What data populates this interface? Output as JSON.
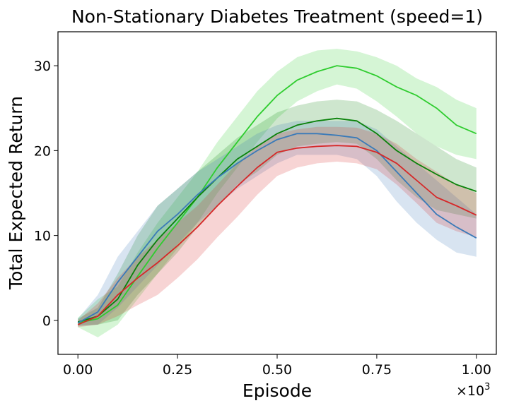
{
  "chart_data": {
    "type": "line",
    "title": "Non-Stationary Diabetes Treatment (speed=1)",
    "xlabel": "Episode",
    "ylabel": "Total Expected Return",
    "x_multiplier": {
      "base": "×10",
      "exponent": "3"
    },
    "xlim": [
      -0.05,
      1.05
    ],
    "ylim": [
      -4,
      34
    ],
    "xticks": [
      0.0,
      0.25,
      0.5,
      0.75,
      1.0
    ],
    "xtick_labels": [
      "0.00",
      "0.25",
      "0.50",
      "0.75",
      "1.00"
    ],
    "yticks": [
      0,
      10,
      20,
      30
    ],
    "ytick_labels": [
      "0",
      "10",
      "20",
      "30"
    ],
    "grid": false,
    "series": [
      {
        "name": "light green",
        "color": "#2ecc2e",
        "x": [
          0.0,
          0.05,
          0.1,
          0.15,
          0.2,
          0.25,
          0.3,
          0.35,
          0.4,
          0.45,
          0.5,
          0.55,
          0.6,
          0.65,
          0.7,
          0.75,
          0.8,
          0.85,
          0.9,
          0.95,
          1.0
        ],
        "y": [
          -0.3,
          0.2,
          1.8,
          5.2,
          8.5,
          11.5,
          14.5,
          18.0,
          21.0,
          24.0,
          26.5,
          28.3,
          29.3,
          30.0,
          29.7,
          28.8,
          27.5,
          26.5,
          25.0,
          23.0,
          22.0
        ],
        "lower": [
          -0.8,
          -2.0,
          -0.5,
          2.5,
          5.5,
          8.5,
          11.5,
          15.0,
          18.0,
          21.0,
          23.8,
          25.8,
          27.0,
          27.8,
          27.3,
          25.8,
          24.0,
          22.0,
          20.5,
          19.5,
          19.0
        ],
        "upper": [
          0.3,
          2.5,
          4.0,
          8.0,
          11.5,
          14.5,
          17.5,
          21.0,
          24.0,
          27.0,
          29.3,
          31.0,
          31.8,
          32.0,
          31.7,
          31.0,
          30.0,
          28.5,
          27.5,
          26.0,
          25.0
        ]
      },
      {
        "name": "dark green",
        "color": "#0a820a",
        "x": [
          0.0,
          0.05,
          0.1,
          0.15,
          0.2,
          0.25,
          0.3,
          0.35,
          0.4,
          0.45,
          0.5,
          0.55,
          0.6,
          0.65,
          0.7,
          0.75,
          0.8,
          0.85,
          0.9,
          0.95,
          1.0
        ],
        "y": [
          -0.2,
          0.5,
          2.5,
          6.5,
          9.5,
          12.0,
          14.5,
          16.8,
          19.0,
          20.5,
          22.0,
          23.0,
          23.5,
          23.8,
          23.5,
          22.0,
          20.0,
          18.5,
          17.2,
          16.0,
          15.2
        ],
        "lower": [
          -0.6,
          -0.5,
          0.0,
          3.0,
          5.5,
          8.0,
          11.0,
          13.5,
          16.0,
          17.5,
          19.5,
          20.5,
          20.8,
          21.0,
          20.8,
          19.0,
          16.5,
          14.5,
          13.0,
          12.5,
          12.0
        ],
        "upper": [
          0.2,
          1.5,
          5.5,
          10.0,
          13.5,
          15.5,
          17.5,
          19.5,
          21.5,
          23.0,
          24.5,
          25.3,
          25.8,
          26.0,
          25.8,
          24.8,
          23.5,
          22.0,
          20.5,
          19.0,
          18.0
        ]
      },
      {
        "name": "blue",
        "color": "#3a7ab8",
        "x": [
          0.0,
          0.05,
          0.1,
          0.15,
          0.2,
          0.25,
          0.3,
          0.35,
          0.4,
          0.45,
          0.5,
          0.55,
          0.6,
          0.65,
          0.7,
          0.75,
          0.8,
          0.85,
          0.9,
          0.95,
          1.0
        ],
        "y": [
          -0.3,
          1.0,
          4.5,
          7.5,
          10.5,
          12.5,
          14.8,
          16.8,
          18.5,
          20.0,
          21.3,
          22.0,
          22.0,
          21.8,
          21.5,
          20.0,
          17.5,
          15.0,
          12.5,
          11.0,
          9.7
        ],
        "lower": [
          -0.7,
          -0.5,
          1.5,
          4.0,
          6.5,
          9.0,
          11.5,
          13.5,
          15.5,
          17.0,
          18.5,
          19.5,
          19.5,
          19.5,
          19.0,
          17.0,
          14.0,
          11.5,
          9.5,
          8.0,
          7.5
        ],
        "upper": [
          0.2,
          3.0,
          7.5,
          10.5,
          13.5,
          15.5,
          17.5,
          19.0,
          20.5,
          22.0,
          23.0,
          23.5,
          23.5,
          23.5,
          23.5,
          22.5,
          20.5,
          18.5,
          16.5,
          14.5,
          12.5
        ]
      },
      {
        "name": "red",
        "color": "#d62728",
        "x": [
          0.0,
          0.05,
          0.1,
          0.15,
          0.2,
          0.25,
          0.3,
          0.35,
          0.4,
          0.45,
          0.5,
          0.55,
          0.6,
          0.65,
          0.7,
          0.75,
          0.8,
          0.85,
          0.9,
          0.95,
          1.0
        ],
        "y": [
          -0.5,
          0.5,
          3.0,
          5.0,
          6.8,
          8.8,
          11.0,
          13.5,
          15.8,
          18.0,
          19.8,
          20.3,
          20.5,
          20.6,
          20.5,
          19.8,
          18.5,
          16.5,
          14.5,
          13.5,
          12.4
        ],
        "lower": [
          -0.8,
          -0.5,
          0.5,
          1.8,
          3.0,
          5.0,
          7.2,
          9.8,
          12.2,
          14.8,
          17.0,
          18.0,
          18.5,
          18.7,
          18.5,
          17.8,
          16.0,
          13.8,
          11.5,
          10.5,
          9.8
        ],
        "upper": [
          0.0,
          2.0,
          5.0,
          7.5,
          9.5,
          11.5,
          13.5,
          16.0,
          18.5,
          20.5,
          22.0,
          22.5,
          22.8,
          22.8,
          22.7,
          22.0,
          20.8,
          19.0,
          17.5,
          16.0,
          15.0
        ]
      }
    ]
  }
}
